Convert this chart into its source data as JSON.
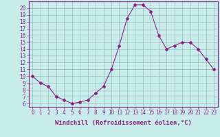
{
  "x": [
    0,
    1,
    2,
    3,
    4,
    5,
    6,
    7,
    8,
    9,
    10,
    11,
    12,
    13,
    14,
    15,
    16,
    17,
    18,
    19,
    20,
    21,
    22,
    23
  ],
  "y": [
    10.0,
    9.0,
    8.5,
    7.0,
    6.5,
    6.0,
    6.2,
    6.5,
    7.5,
    8.5,
    11.0,
    14.5,
    18.5,
    20.5,
    20.5,
    19.5,
    16.0,
    14.0,
    14.5,
    15.0,
    15.0,
    14.0,
    12.5,
    11.0
  ],
  "xlim": [
    -0.5,
    23.5
  ],
  "ylim": [
    5.5,
    21.0
  ],
  "yticks": [
    6,
    7,
    8,
    9,
    10,
    11,
    12,
    13,
    14,
    15,
    16,
    17,
    18,
    19,
    20
  ],
  "xticks": [
    0,
    1,
    2,
    3,
    4,
    5,
    6,
    7,
    8,
    9,
    10,
    11,
    12,
    13,
    14,
    15,
    16,
    17,
    18,
    19,
    20,
    21,
    22,
    23
  ],
  "xlabel": "Windchill (Refroidissement éolien,°C)",
  "line_color": "#882288",
  "marker": "D",
  "marker_size": 2.0,
  "bg_color": "#c8ecea",
  "grid_color": "#99bbbb",
  "axis_color": "#882288",
  "tick_color": "#882288",
  "label_color": "#882288",
  "tick_fontsize": 5.5,
  "xlabel_fontsize": 6.5
}
